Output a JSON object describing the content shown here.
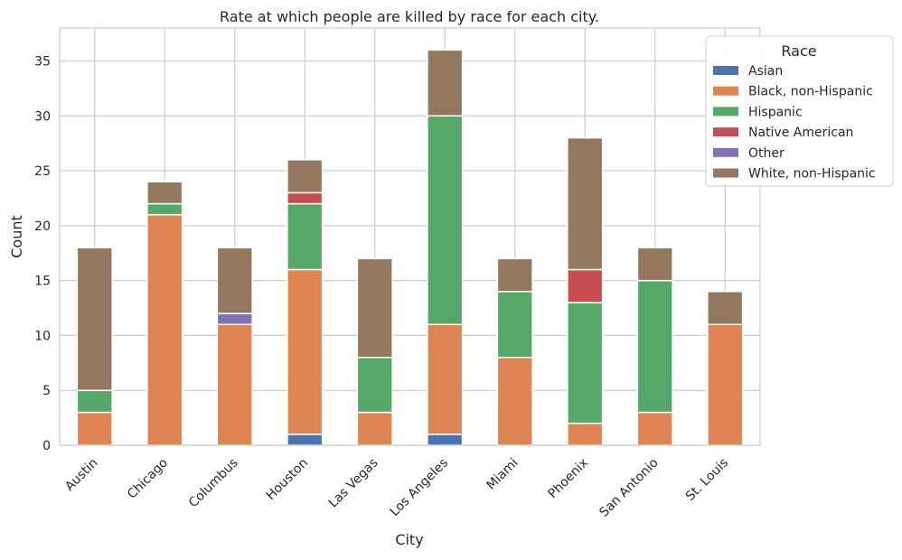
{
  "chart_data": {
    "type": "bar",
    "stacked": true,
    "title": "Rate at which people are killed by race for each city.",
    "xlabel": "City",
    "ylabel": "Count",
    "ylim": [
      0,
      38
    ],
    "yticks": [
      0,
      5,
      10,
      15,
      20,
      25,
      30,
      35
    ],
    "grid": true,
    "legend": {
      "title": "Race",
      "placement": "top-right"
    },
    "categories": [
      "Austin",
      "Chicago",
      "Columbus",
      "Houston",
      "Las Vegas",
      "Los Angeles",
      "Miami",
      "Phoenix",
      "San Antonio",
      "St. Louis"
    ],
    "series": [
      {
        "name": "Asian",
        "color": "#4c72b0",
        "values": [
          0,
          0,
          0,
          1,
          0,
          1,
          0,
          0,
          0,
          0
        ]
      },
      {
        "name": "Black, non-Hispanic",
        "color": "#dd8452",
        "values": [
          3,
          21,
          11,
          15,
          3,
          10,
          8,
          2,
          3,
          11
        ]
      },
      {
        "name": "Hispanic",
        "color": "#55a868",
        "values": [
          2,
          1,
          0,
          6,
          5,
          19,
          6,
          11,
          12,
          0
        ]
      },
      {
        "name": "Native American",
        "color": "#c44e52",
        "values": [
          0,
          0,
          0,
          1,
          0,
          0,
          0,
          3,
          0,
          0
        ]
      },
      {
        "name": "Other",
        "color": "#8172b3",
        "values": [
          0,
          0,
          1,
          0,
          0,
          0,
          0,
          0,
          0,
          0
        ]
      },
      {
        "name": "White, non-Hispanic",
        "color": "#937860",
        "values": [
          13,
          2,
          6,
          3,
          9,
          6,
          3,
          12,
          3,
          3
        ]
      }
    ]
  }
}
